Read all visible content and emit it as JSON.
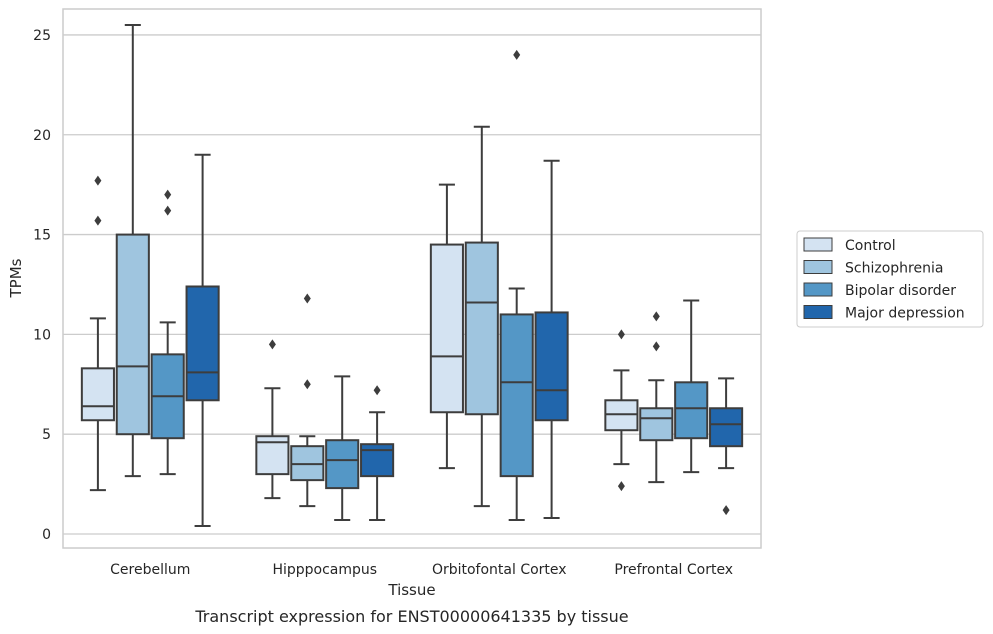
{
  "chart_data": {
    "type": "box",
    "title": "Transcript expression for ENST00000641335 by tissue",
    "xlabel": "Tissue",
    "ylabel": "TPMs",
    "ylim": [
      -0.7,
      26.3
    ],
    "yticks": [
      0,
      5,
      10,
      15,
      20,
      25
    ],
    "grid": true,
    "legend_position": "right",
    "categories": [
      "Cerebellum",
      "Hipppocampus",
      "Orbitofontal Cortex",
      "Prefrontal Cortex"
    ],
    "series": [
      {
        "name": "Control",
        "color": "#d4e3f2",
        "boxes": [
          {
            "whislo": 2.2,
            "q1": 5.7,
            "med": 6.4,
            "q3": 8.3,
            "whishi": 10.8,
            "fliers": [
              15.7,
              17.7
            ]
          },
          {
            "whislo": 1.8,
            "q1": 3.0,
            "med": 4.6,
            "q3": 4.9,
            "whishi": 7.3,
            "fliers": [
              9.5
            ]
          },
          {
            "whislo": 3.3,
            "q1": 6.1,
            "med": 8.9,
            "q3": 14.5,
            "whishi": 17.5,
            "fliers": []
          },
          {
            "whislo": 3.5,
            "q1": 5.2,
            "med": 6.0,
            "q3": 6.7,
            "whishi": 8.2,
            "fliers": [
              2.4,
              10.0
            ]
          }
        ]
      },
      {
        "name": "Schizophrenia",
        "color": "#9fc5df",
        "boxes": [
          {
            "whislo": 2.9,
            "q1": 5.0,
            "med": 8.4,
            "q3": 15.0,
            "whishi": 25.5,
            "fliers": []
          },
          {
            "whislo": 1.4,
            "q1": 2.7,
            "med": 3.5,
            "q3": 4.4,
            "whishi": 4.9,
            "fliers": [
              7.5,
              11.8
            ]
          },
          {
            "whislo": 1.4,
            "q1": 6.0,
            "med": 11.6,
            "q3": 14.6,
            "whishi": 20.4,
            "fliers": []
          },
          {
            "whislo": 2.6,
            "q1": 4.7,
            "med": 5.8,
            "q3": 6.3,
            "whishi": 7.7,
            "fliers": [
              9.4,
              10.9
            ]
          }
        ]
      },
      {
        "name": "Bipolar disorder",
        "color": "#5497c6",
        "boxes": [
          {
            "whislo": 3.0,
            "q1": 4.8,
            "med": 6.9,
            "q3": 9.0,
            "whishi": 10.6,
            "fliers": [
              16.2,
              17.0
            ]
          },
          {
            "whislo": 0.7,
            "q1": 2.3,
            "med": 3.7,
            "q3": 4.7,
            "whishi": 7.9,
            "fliers": []
          },
          {
            "whislo": 0.7,
            "q1": 2.9,
            "med": 7.6,
            "q3": 11.0,
            "whishi": 12.3,
            "fliers": [
              24.0
            ]
          },
          {
            "whislo": 3.1,
            "q1": 4.8,
            "med": 6.3,
            "q3": 7.6,
            "whishi": 11.7,
            "fliers": []
          }
        ]
      },
      {
        "name": "Major depression",
        "color": "#2166ac",
        "boxes": [
          {
            "whislo": 0.4,
            "q1": 6.7,
            "med": 8.1,
            "q3": 12.4,
            "whishi": 19.0,
            "fliers": []
          },
          {
            "whislo": 0.7,
            "q1": 2.9,
            "med": 4.2,
            "q3": 4.5,
            "whishi": 6.1,
            "fliers": [
              7.2
            ]
          },
          {
            "whislo": 0.8,
            "q1": 5.7,
            "med": 7.2,
            "q3": 11.1,
            "whishi": 18.7,
            "fliers": []
          },
          {
            "whislo": 3.3,
            "q1": 4.4,
            "med": 5.5,
            "q3": 6.3,
            "whishi": 7.8,
            "fliers": [
              1.2
            ]
          }
        ]
      }
    ]
  }
}
